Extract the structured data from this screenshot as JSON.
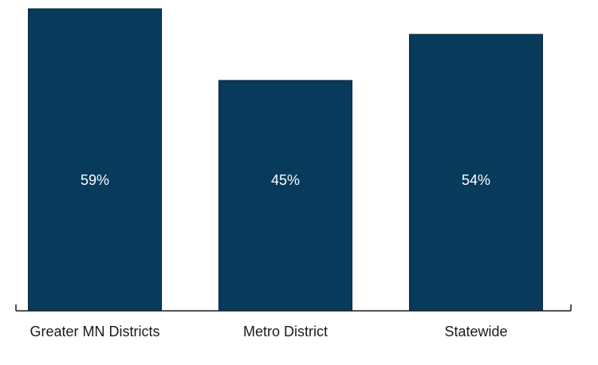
{
  "chart_data": {
    "type": "bar",
    "categories": [
      "Greater MN Districts",
      "Metro District",
      "Statewide"
    ],
    "values": [
      59,
      45,
      54
    ],
    "data_labels": [
      "59%",
      "45%",
      "54%"
    ],
    "ylim": [
      0,
      59
    ],
    "grid": false,
    "legend": "none",
    "title": "",
    "xlabel": "",
    "ylabel": "",
    "colors": {
      "bar": "#083a5c",
      "bar_edge": "#04263d",
      "axis": "#1a1a1a",
      "data_label": "#ffffff",
      "category_label": "#1a1a1a"
    }
  }
}
